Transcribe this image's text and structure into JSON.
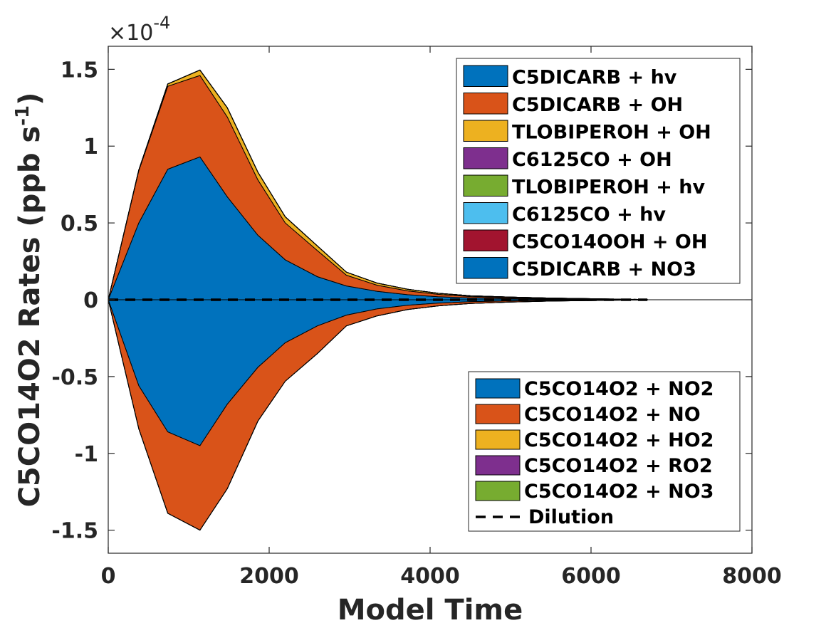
{
  "chart_data": {
    "type": "area",
    "xlabel": "Model Time",
    "ylabel": "C5CO14O2 Rates (ppb s",
    "ylabel_unit_sup": "-1",
    "ylabel_close": ")",
    "exponent_prefix": "×10",
    "exponent_power": "-4",
    "xlim": [
      0,
      8000
    ],
    "ylim": [
      -1.65,
      1.65
    ],
    "xticks": [
      0,
      2000,
      4000,
      6000,
      8000
    ],
    "xtick_labels": [
      "0",
      "2000",
      "4000",
      "6000",
      "8000"
    ],
    "yticks": [
      -1.5,
      -1,
      -0.5,
      0,
      0.5,
      1,
      1.5
    ],
    "ytick_labels": [
      "-1.5",
      "-1",
      "-0.5",
      "0",
      "0.5",
      "1",
      "1.5"
    ],
    "legend_production_position": "top-right",
    "legend_loss_position": "bottom-right",
    "production_series": [
      {
        "name": "C5DICARB + hv",
        "color": "#0072BD",
        "x": [
          0,
          380,
          740,
          1140,
          1480,
          1860,
          2200,
          2600,
          2960,
          3340,
          3720,
          4100,
          4500,
          5000,
          5500,
          6000,
          6300,
          6700
        ],
        "y": [
          0,
          0.5,
          0.85,
          0.93,
          0.67,
          0.42,
          0.26,
          0.15,
          0.09,
          0.055,
          0.033,
          0.02,
          0.012,
          0.007,
          0.004,
          0.002,
          0.001,
          0.0005
        ]
      },
      {
        "name": "C5DICARB + OH",
        "color": "#D95319",
        "x": [
          0,
          380,
          740,
          1140,
          1480,
          1860,
          2200,
          2600,
          2960,
          3340,
          3720,
          4100,
          4500,
          5000,
          5500,
          6000,
          6300,
          6700
        ],
        "y": [
          0,
          0.34,
          0.54,
          0.53,
          0.52,
          0.36,
          0.24,
          0.17,
          0.07,
          0.04,
          0.025,
          0.015,
          0.009,
          0.006,
          0.004,
          0.003,
          0.002,
          0.0005
        ]
      },
      {
        "name": "TLOBIPEROH + OH",
        "color": "#EDB120",
        "x": [
          0,
          380,
          740,
          1140,
          1480,
          1860,
          2200,
          2600,
          2960,
          3340,
          3720,
          4100,
          4500,
          5000,
          5500,
          6000,
          6300,
          6700
        ],
        "y": [
          0,
          0.005,
          0.015,
          0.035,
          0.06,
          0.05,
          0.04,
          0.03,
          0.02,
          0.014,
          0.01,
          0.007,
          0.005,
          0.004,
          0.003,
          0.002,
          0.001,
          0.0005
        ]
      },
      {
        "name": "C6125CO + OH",
        "color": "#7E2F8E",
        "x": [
          0,
          6700
        ],
        "y": [
          0,
          0
        ]
      },
      {
        "name": "TLOBIPEROH + hv",
        "color": "#77AC30",
        "x": [
          0,
          6700
        ],
        "y": [
          0,
          0
        ]
      },
      {
        "name": "C6125CO + hv",
        "color": "#4DBEEE",
        "x": [
          0,
          6700
        ],
        "y": [
          0,
          0
        ]
      },
      {
        "name": "C5CO14OOH + OH",
        "color": "#A2142F",
        "x": [
          0,
          6700
        ],
        "y": [
          0,
          0
        ]
      },
      {
        "name": "C5DICARB + NO3",
        "color": "#0072BD",
        "x": [
          0,
          6700
        ],
        "y": [
          0,
          0
        ]
      }
    ],
    "loss_series": [
      {
        "name": "C5CO14O2 + NO2",
        "color": "#0072BD",
        "x": [
          0,
          380,
          740,
          1140,
          1480,
          1860,
          2200,
          2600,
          2960,
          3340,
          3720,
          4100,
          4500,
          5000,
          5500,
          6000,
          6300,
          6700
        ],
        "y": [
          0,
          -0.56,
          -0.86,
          -0.95,
          -0.68,
          -0.44,
          -0.28,
          -0.17,
          -0.1,
          -0.06,
          -0.036,
          -0.022,
          -0.013,
          -0.008,
          -0.004,
          -0.002,
          -0.001,
          -0.0005
        ]
      },
      {
        "name": "C5CO14O2 + NO",
        "color": "#D95319",
        "x": [
          0,
          380,
          740,
          1140,
          1480,
          1860,
          2200,
          2600,
          2960,
          3340,
          3720,
          4100,
          4500,
          5000,
          5500,
          6000,
          6300,
          6700
        ],
        "y": [
          0,
          -0.28,
          -0.53,
          -0.55,
          -0.55,
          -0.35,
          -0.25,
          -0.18,
          -0.07,
          -0.045,
          -0.028,
          -0.018,
          -0.011,
          -0.007,
          -0.005,
          -0.003,
          -0.002,
          -0.0005
        ]
      },
      {
        "name": "C5CO14O2 + HO2",
        "color": "#EDB120",
        "x": [
          0,
          6700
        ],
        "y": [
          0,
          0
        ]
      },
      {
        "name": "C5CO14O2 + RO2",
        "color": "#7E2F8E",
        "x": [
          0,
          6700
        ],
        "y": [
          0,
          0
        ]
      },
      {
        "name": "C5CO14O2 + NO3",
        "color": "#77AC30",
        "x": [
          0,
          6700
        ],
        "y": [
          0,
          0
        ]
      }
    ],
    "dilution": {
      "name": "Dilution",
      "color": "#000000",
      "x": [
        0,
        6700
      ],
      "y": [
        0,
        0
      ]
    }
  }
}
